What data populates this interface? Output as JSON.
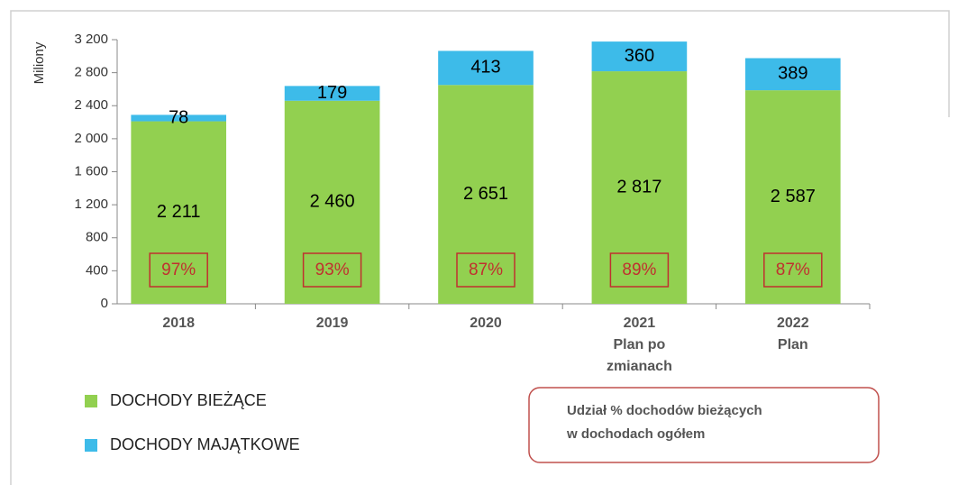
{
  "chart_data": {
    "type": "stacked_bar",
    "y_label": "Miliony",
    "categories": [
      [
        "2018"
      ],
      [
        "2019"
      ],
      [
        "2020"
      ],
      [
        "2021",
        "Plan po",
        "zmianach"
      ],
      [
        "2022",
        "Plan"
      ]
    ],
    "series": [
      {
        "name": "DOCHODY BIEŻĄCE",
        "color": "#92d050",
        "values": [
          2211,
          2460,
          2651,
          2817,
          2587
        ],
        "value_labels": [
          "2 211",
          "2 460",
          "2 651",
          "2 817",
          "2 587"
        ]
      },
      {
        "name": "DOCHODY MAJĄTKOWE",
        "color": "#3dbbe9",
        "values": [
          78,
          179,
          413,
          360,
          389
        ]
      }
    ],
    "shares": {
      "values": [
        97,
        93,
        87,
        89,
        87
      ],
      "value_labels": [
        "97%",
        "93%",
        "87%",
        "89%",
        "87%"
      ]
    },
    "annotation": [
      "Udział % dochodów bieżących",
      "w dochodach ogółem"
    ],
    "ylim": [
      0,
      3200
    ],
    "yticks": [
      0,
      400,
      800,
      {
        "value": 1200,
        "label": "1 200"
      },
      {
        "value": 1600,
        "label": "1 600"
      },
      {
        "value": 2000,
        "label": "2 000"
      },
      {
        "value": 2400,
        "label": "2 400"
      },
      {
        "value": 2800,
        "label": "2 800"
      },
      {
        "value": 3200,
        "label": "3 200"
      }
    ]
  }
}
